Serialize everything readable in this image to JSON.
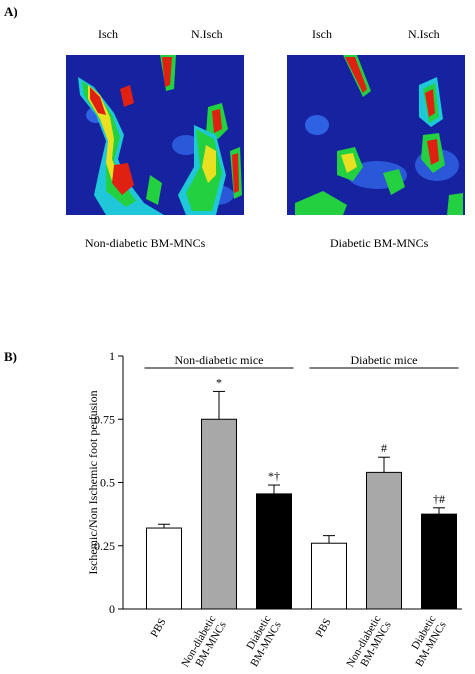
{
  "panel_a": {
    "letter": "A)",
    "left_image": {
      "labels": [
        "Isch",
        "N.Isch"
      ],
      "caption": "Non-diabetic BM-MNCs"
    },
    "right_image": {
      "labels": [
        "Isch",
        "N.Isch"
      ],
      "caption": "Diabetic BM-MNCs"
    }
  },
  "panel_b": {
    "letter": "B)"
  },
  "chart_data": {
    "type": "bar",
    "ylabel": "Ischemic/Non Ischemic foot perfusion",
    "ylim": [
      0,
      1
    ],
    "yticks": [
      "0",
      "0.25",
      "0.5",
      "0.75",
      "1"
    ],
    "groups": [
      {
        "label": "Non-diabetic mice",
        "members": [
          0,
          1,
          2
        ]
      },
      {
        "label": "Diabetic mice",
        "members": [
          3,
          4,
          5
        ]
      }
    ],
    "categories": [
      [
        "PBS"
      ],
      [
        "Non-diabetic",
        "BM-MNCs"
      ],
      [
        "Diabetic",
        "BM-MNCs"
      ],
      [
        "PBS"
      ],
      [
        "Non-diabetic",
        "BM-MNCs"
      ],
      [
        "Diabetic",
        "BM-MNCs"
      ]
    ],
    "values": [
      0.32,
      0.75,
      0.455,
      0.26,
      0.54,
      0.375
    ],
    "errors": [
      0.015,
      0.11,
      0.035,
      0.03,
      0.06,
      0.025
    ],
    "fills": [
      "#ffffff",
      "#a8a8a8",
      "#000000",
      "#ffffff",
      "#a8a8a8",
      "#000000"
    ],
    "annotations": [
      "",
      "*",
      "*†",
      "",
      "#",
      "†#"
    ]
  }
}
